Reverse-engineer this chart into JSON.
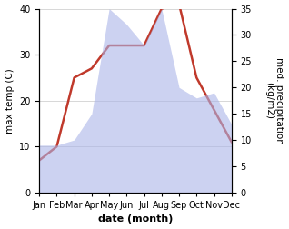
{
  "months": [
    "Jan",
    "Feb",
    "Mar",
    "Apr",
    "May",
    "Jun",
    "Jul",
    "Aug",
    "Sep",
    "Oct",
    "Nov",
    "Dec"
  ],
  "temperature": [
    7,
    10,
    25,
    27,
    32,
    32,
    32,
    40,
    41,
    25,
    18,
    11
  ],
  "precipitation": [
    9,
    9,
    10,
    15,
    35,
    32,
    28,
    35,
    20,
    18,
    19,
    13
  ],
  "temp_color": "#c0392b",
  "precip_color": "#aab4e8",
  "precip_alpha": 0.6,
  "ylabel_left": "max temp (C)",
  "ylabel_right": "med. precipitation\n(kg/m2)",
  "xlabel": "date (month)",
  "ylim_left": [
    0,
    40
  ],
  "ylim_right": [
    0,
    35
  ],
  "yticks_left": [
    0,
    10,
    20,
    30,
    40
  ],
  "yticks_right": [
    0,
    5,
    10,
    15,
    20,
    25,
    30,
    35
  ],
  "bg_color": "#ffffff",
  "grid_color": "#c8c8c8",
  "temp_linewidth": 1.8,
  "ylabel_right_rotation": 270,
  "ylabel_right_labelpad": 10,
  "ylabel_fontsize": 7.5,
  "tick_fontsize": 7,
  "xlabel_fontsize": 8
}
